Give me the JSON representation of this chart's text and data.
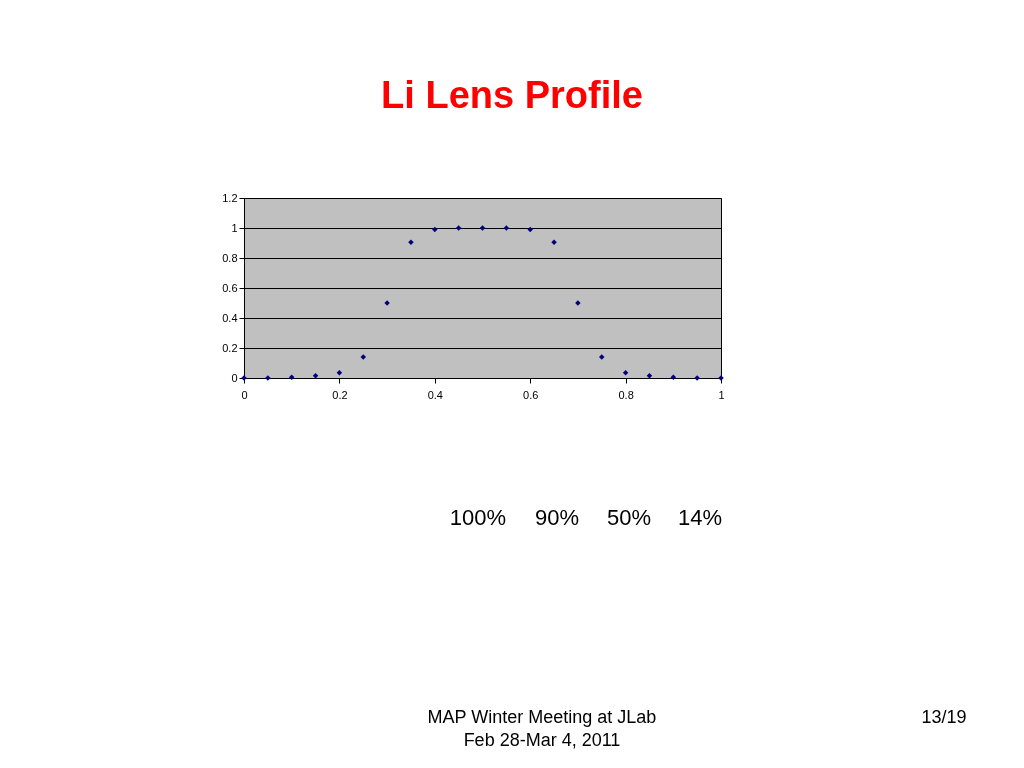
{
  "chart_data": {
    "type": "scatter",
    "title": "Li Lens Profile",
    "x": [
      0,
      0.05,
      0.1,
      0.15,
      0.2,
      0.25,
      0.3,
      0.35,
      0.4,
      0.45,
      0.5,
      0.55,
      0.6,
      0.65,
      0.7,
      0.75,
      0.8,
      0.85,
      0.9,
      0.95,
      1
    ],
    "series": [
      {
        "color": "#000080",
        "values": [
          0,
          0,
          0.005,
          0.015,
          0.035,
          0.14,
          0.5,
          0.905,
          0.99,
          1,
          1,
          1,
          0.99,
          0.905,
          0.5,
          0.14,
          0.035,
          0.015,
          0.005,
          0,
          0
        ]
      }
    ],
    "xlim": [
      0,
      1
    ],
    "xticks": [
      0,
      0.2,
      0.4,
      0.6,
      0.8,
      1
    ],
    "ylim": [
      0,
      1.2
    ],
    "yticks": [
      0,
      0.2,
      0.4,
      0.6,
      0.8,
      1,
      1.2
    ],
    "grid": "y",
    "marker": "diamond",
    "legend": false,
    "annotations": [
      "100%",
      "90%",
      "50%",
      "14%",
      "MAP Winter Meeting at JLab",
      "Feb 28-Mar 4, 2011",
      "13/19"
    ]
  }
}
